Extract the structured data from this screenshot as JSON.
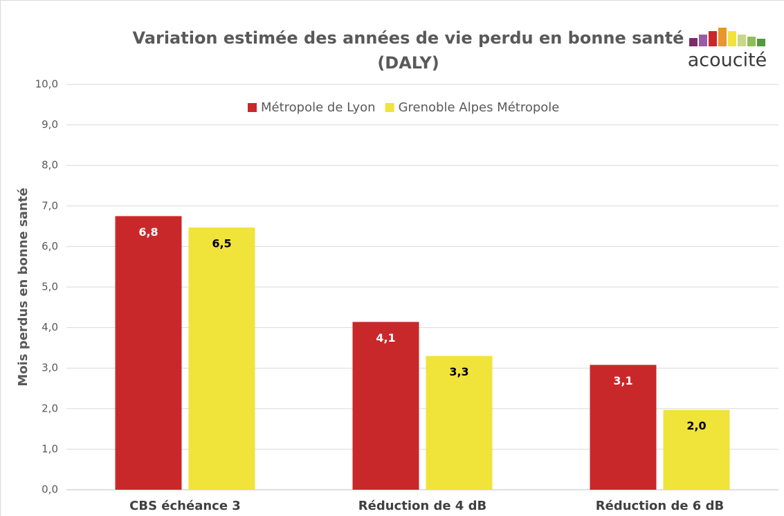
{
  "chart_data": {
    "type": "bar",
    "title": [
      "Variation estimée des années de vie perdu en bonne santé",
      "(DALY)"
    ],
    "logo_text": "acoucité",
    "ylabel": "Mois perdus en bonne santé",
    "categories": [
      "CBS échéance 3",
      "Réduction de 4 dB",
      "Réduction de 6 dB"
    ],
    "series": [
      {
        "name": "Métropole de Lyon",
        "color": "#c9282a",
        "label_color": "#ffffff",
        "values": [
          6.75,
          4.14,
          3.08
        ],
        "value_labels": [
          "6,8",
          "4,1",
          "3,1"
        ]
      },
      {
        "name": "Grenoble Alpes Métropole",
        "color": "#f0e33a",
        "label_color": "#000000",
        "values": [
          6.47,
          3.3,
          1.97
        ],
        "value_labels": [
          "6,5",
          "3,3",
          "2,0"
        ]
      }
    ],
    "ylim": [
      0,
      10
    ],
    "yticks": [
      {
        "value": 0,
        "label": "0,0"
      },
      {
        "value": 1,
        "label": "1,0"
      },
      {
        "value": 2,
        "label": "2,0"
      },
      {
        "value": 3,
        "label": "3,0"
      },
      {
        "value": 4,
        "label": "4,0"
      },
      {
        "value": 5,
        "label": "5,0"
      },
      {
        "value": 6,
        "label": "6,0"
      },
      {
        "value": 7,
        "label": "7,0"
      },
      {
        "value": 8,
        "label": "8,0"
      },
      {
        "value": 9,
        "label": "9,0"
      },
      {
        "value": 10,
        "label": "10,0"
      }
    ],
    "grid": true,
    "legend": "top"
  }
}
